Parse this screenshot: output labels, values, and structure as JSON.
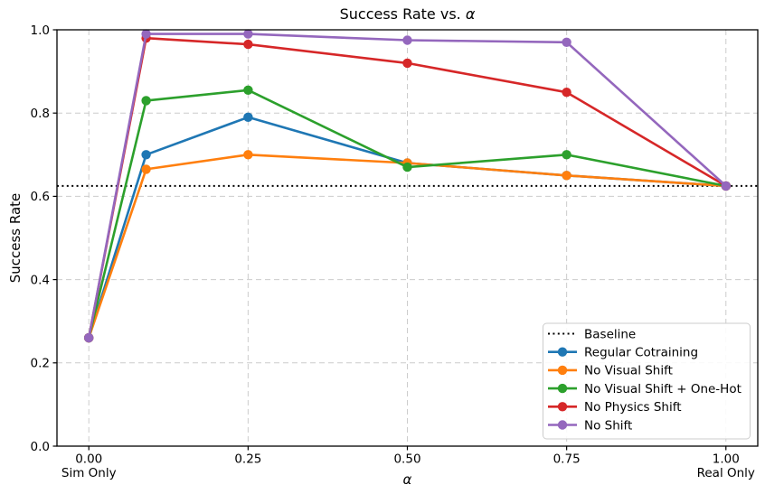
{
  "chart_data": {
    "type": "line",
    "title": "Success Rate vs. α",
    "xlabel": "α",
    "ylabel": "Success Rate",
    "xlim": [
      -0.05,
      1.05
    ],
    "ylim": [
      0.0,
      1.0
    ],
    "grid": true,
    "legend_position": "lower right",
    "x": [
      0.0,
      0.09,
      0.25,
      0.5,
      0.75,
      1.0
    ],
    "xticks": [
      {
        "value": 0.0,
        "label": "0.00",
        "sublabel": "Sim Only"
      },
      {
        "value": 0.25,
        "label": "0.25",
        "sublabel": ""
      },
      {
        "value": 0.5,
        "label": "0.50",
        "sublabel": ""
      },
      {
        "value": 0.75,
        "label": "0.75",
        "sublabel": ""
      },
      {
        "value": 1.0,
        "label": "1.00",
        "sublabel": "Real Only"
      }
    ],
    "yticks": [
      0.0,
      0.2,
      0.4,
      0.6,
      0.8,
      1.0
    ],
    "baseline": {
      "label": "Baseline",
      "value": 0.625,
      "color": "#000000",
      "style": "dotted"
    },
    "series": [
      {
        "name": "Regular Cotraining",
        "color": "#1f77b4",
        "values": [
          0.26,
          0.7,
          0.79,
          0.68,
          0.65,
          0.625
        ]
      },
      {
        "name": "No Visual Shift",
        "color": "#ff7f0e",
        "values": [
          0.26,
          0.665,
          0.7,
          0.68,
          0.65,
          0.625
        ]
      },
      {
        "name": "No Visual Shift + One-Hot",
        "color": "#2ca02c",
        "values": [
          0.26,
          0.83,
          0.855,
          0.67,
          0.7,
          0.625
        ]
      },
      {
        "name": "No Physics Shift",
        "color": "#d62728",
        "values": [
          0.26,
          0.98,
          0.965,
          0.92,
          0.85,
          0.625
        ]
      },
      {
        "name": "No Shift",
        "color": "#9467bd",
        "values": [
          0.26,
          0.99,
          0.99,
          0.975,
          0.97,
          0.625
        ]
      }
    ],
    "style": {
      "grid_color": "#cccccc",
      "spine_color": "#000000",
      "legend_border": "#cccccc",
      "background": "#ffffff"
    }
  }
}
